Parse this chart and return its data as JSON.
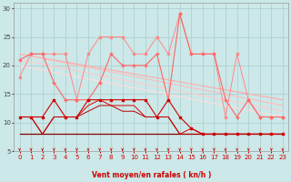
{
  "xlabel": "Vent moyen/en rafales ( kn/h )",
  "background_color": "#cce8e8",
  "grid_color": "#aacccc",
  "xlim": [
    -0.5,
    23.5
  ],
  "ylim": [
    5,
    31
  ],
  "yticks": [
    5,
    10,
    15,
    20,
    25,
    30
  ],
  "xticks": [
    0,
    1,
    2,
    3,
    4,
    5,
    6,
    7,
    8,
    9,
    10,
    11,
    12,
    13,
    14,
    15,
    16,
    17,
    18,
    19,
    20,
    21,
    22,
    23
  ],
  "series": [
    {
      "x": [
        0,
        1,
        2,
        3,
        4,
        5,
        6,
        7,
        8,
        9,
        10,
        11,
        12,
        13,
        14,
        15,
        16,
        17,
        18,
        19,
        20,
        21,
        22,
        23
      ],
      "y": [
        18,
        22,
        22,
        22,
        22,
        14,
        22,
        25,
        25,
        25,
        22,
        22,
        25,
        22,
        29,
        22,
        22,
        22,
        11,
        22,
        14,
        11,
        11,
        11
      ],
      "color": "#ff8888",
      "linewidth": 0.7,
      "marker": "s",
      "markersize": 1.5,
      "zorder": 3
    },
    {
      "x": [
        0,
        23
      ],
      "y": [
        22,
        14
      ],
      "color": "#ffaaaa",
      "linewidth": 0.8,
      "marker": null,
      "markersize": 0,
      "zorder": 2
    },
    {
      "x": [
        0,
        23
      ],
      "y": [
        22,
        13
      ],
      "color": "#ffbbbb",
      "linewidth": 0.8,
      "marker": null,
      "markersize": 0,
      "zorder": 2
    },
    {
      "x": [
        0,
        23
      ],
      "y": [
        21,
        12
      ],
      "color": "#ffcccc",
      "linewidth": 0.8,
      "marker": null,
      "markersize": 0,
      "zorder": 2
    },
    {
      "x": [
        0,
        23
      ],
      "y": [
        20,
        11
      ],
      "color": "#ffdddd",
      "linewidth": 0.8,
      "marker": null,
      "markersize": 0,
      "zorder": 2
    },
    {
      "x": [
        0,
        1,
        2,
        3,
        4,
        5,
        6,
        7,
        8,
        9,
        10,
        11,
        12,
        13,
        14,
        15,
        16,
        17,
        18,
        19,
        20,
        21,
        22,
        23
      ],
      "y": [
        21,
        22,
        22,
        17,
        14,
        14,
        14,
        17,
        22,
        20,
        20,
        20,
        22,
        14,
        29,
        22,
        22,
        22,
        14,
        11,
        14,
        11,
        11,
        11
      ],
      "color": "#ff6666",
      "linewidth": 0.8,
      "marker": "+",
      "markersize": 3,
      "zorder": 4
    },
    {
      "x": [
        0,
        1,
        2,
        3,
        4,
        5,
        6,
        7,
        8,
        9,
        10,
        11,
        12,
        13,
        14,
        15,
        16,
        17,
        18,
        19,
        20,
        21,
        22,
        23
      ],
      "y": [
        11,
        11,
        11,
        14,
        11,
        11,
        14,
        14,
        14,
        14,
        14,
        14,
        11,
        14,
        11,
        9,
        8,
        8,
        8,
        8,
        8,
        8,
        8,
        8
      ],
      "color": "#cc0000",
      "linewidth": 0.8,
      "marker": "s",
      "markersize": 1.5,
      "zorder": 5
    },
    {
      "x": [
        0,
        1,
        2,
        3,
        4,
        5,
        6,
        7,
        8,
        9,
        10,
        11,
        12,
        13,
        14,
        15,
        16,
        17,
        18,
        19,
        20,
        21,
        22,
        23
      ],
      "y": [
        11,
        11,
        8,
        11,
        11,
        11,
        13,
        14,
        13,
        13,
        13,
        11,
        11,
        11,
        8,
        9,
        8,
        8,
        8,
        8,
        8,
        8,
        8,
        8
      ],
      "color": "#dd0000",
      "linewidth": 0.7,
      "marker": null,
      "markersize": 0,
      "zorder": 4
    },
    {
      "x": [
        0,
        1,
        2,
        3,
        4,
        5,
        6,
        7,
        8,
        9,
        10,
        11,
        12,
        13,
        14,
        15,
        16,
        17,
        18,
        19,
        20,
        21,
        22,
        23
      ],
      "y": [
        11,
        11,
        8,
        11,
        11,
        11,
        12,
        13,
        13,
        12,
        12,
        11,
        11,
        11,
        8,
        8,
        8,
        8,
        8,
        8,
        8,
        8,
        8,
        8
      ],
      "color": "#bb0000",
      "linewidth": 0.7,
      "marker": null,
      "markersize": 0,
      "zorder": 4
    },
    {
      "x": [
        0,
        23
      ],
      "y": [
        8,
        8
      ],
      "color": "#880000",
      "linewidth": 0.9,
      "marker": null,
      "markersize": 0,
      "zorder": 3
    }
  ],
  "arrow_color": "#cc0000",
  "xlabel_color": "#cc0000",
  "xlabel_fontsize": 5.5,
  "tick_fontsize": 5,
  "tick_color_x": "#cc0000",
  "tick_color_y": "#444444"
}
